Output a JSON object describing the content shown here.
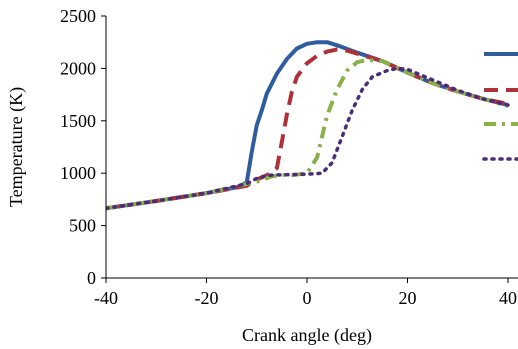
{
  "chart_data": {
    "type": "line",
    "title": "",
    "xlabel": "Crank angle (deg)",
    "ylabel": "Temperature (K)",
    "xlim": [
      -40,
      40
    ],
    "ylim": [
      0,
      2500
    ],
    "xticks": [
      -40,
      -20,
      0,
      20,
      40
    ],
    "yticks": [
      0,
      500,
      1000,
      1500,
      2000,
      2500
    ],
    "grid": false,
    "legend": "right, cut off at image edge",
    "series": [
      {
        "color": "#2E5C9E",
        "style": "solid",
        "points": [
          [
            -40,
            665
          ],
          [
            -30,
            735
          ],
          [
            -20,
            810
          ],
          [
            -14,
            865
          ],
          [
            -12,
            910
          ],
          [
            -11,
            1200
          ],
          [
            -10,
            1460
          ],
          [
            -9,
            1600
          ],
          [
            -8,
            1760
          ],
          [
            -6,
            1950
          ],
          [
            -4,
            2090
          ],
          [
            -2,
            2190
          ],
          [
            0,
            2235
          ],
          [
            2,
            2250
          ],
          [
            4,
            2250
          ],
          [
            6,
            2220
          ],
          [
            10,
            2150
          ],
          [
            15,
            2070
          ],
          [
            20,
            1960
          ],
          [
            25,
            1860
          ],
          [
            30,
            1780
          ],
          [
            35,
            1710
          ],
          [
            40,
            1650
          ]
        ]
      },
      {
        "color": "#B0303A",
        "style": "dash",
        "points": [
          [
            -40,
            665
          ],
          [
            -30,
            735
          ],
          [
            -20,
            810
          ],
          [
            -12,
            880
          ],
          [
            -10,
            940
          ],
          [
            -8,
            980
          ],
          [
            -6,
            1050
          ],
          [
            -5,
            1300
          ],
          [
            -4,
            1560
          ],
          [
            -3,
            1780
          ],
          [
            -2,
            1920
          ],
          [
            0,
            2050
          ],
          [
            2,
            2120
          ],
          [
            4,
            2160
          ],
          [
            6,
            2180
          ],
          [
            8,
            2170
          ],
          [
            10,
            2140
          ],
          [
            15,
            2070
          ],
          [
            20,
            1960
          ],
          [
            25,
            1860
          ],
          [
            30,
            1780
          ],
          [
            35,
            1710
          ],
          [
            40,
            1660
          ]
        ]
      },
      {
        "color": "#8AB04A",
        "style": "dashdot",
        "points": [
          [
            -40,
            665
          ],
          [
            -30,
            735
          ],
          [
            -20,
            810
          ],
          [
            -10,
            920
          ],
          [
            -7,
            970
          ],
          [
            -5,
            985
          ],
          [
            -3,
            980
          ],
          [
            0,
            1000
          ],
          [
            2,
            1150
          ],
          [
            3,
            1350
          ],
          [
            4,
            1550
          ],
          [
            6,
            1800
          ],
          [
            8,
            1980
          ],
          [
            10,
            2060
          ],
          [
            12,
            2080
          ],
          [
            15,
            2070
          ],
          [
            20,
            1960
          ],
          [
            25,
            1860
          ],
          [
            30,
            1780
          ],
          [
            35,
            1710
          ],
          [
            40,
            1640
          ]
        ]
      },
      {
        "color": "#4B2C7A",
        "style": "dot",
        "points": [
          [
            -40,
            665
          ],
          [
            -30,
            735
          ],
          [
            -20,
            810
          ],
          [
            -12,
            900
          ],
          [
            -10,
            950
          ],
          [
            -8,
            980
          ],
          [
            -5,
            985
          ],
          [
            0,
            990
          ],
          [
            3,
            1000
          ],
          [
            5,
            1100
          ],
          [
            7,
            1350
          ],
          [
            9,
            1600
          ],
          [
            11,
            1800
          ],
          [
            13,
            1920
          ],
          [
            16,
            1980
          ],
          [
            18,
            2000
          ],
          [
            20,
            1990
          ],
          [
            25,
            1890
          ],
          [
            30,
            1790
          ],
          [
            35,
            1710
          ],
          [
            40,
            1650
          ]
        ]
      }
    ]
  }
}
